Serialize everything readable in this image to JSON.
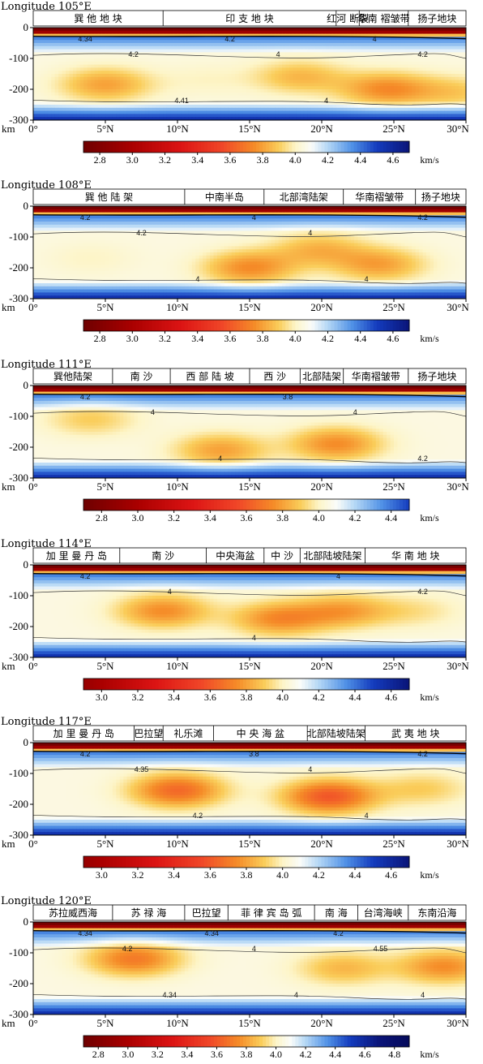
{
  "chart_data": [
    {
      "type": "heatmap",
      "title": "Longitude 105°E",
      "ylabel": "km",
      "y_ticks": [
        "0",
        "-100",
        "-200",
        "-300"
      ],
      "x_ticks": [
        "0°",
        "5°N",
        "10°N",
        "15°N",
        "20°N",
        "25°N",
        "30°N"
      ],
      "xlim": [
        0,
        30
      ],
      "ylim": [
        -300,
        0
      ],
      "regions": [
        {
          "label": "巽 他 地 块",
          "from": 0,
          "to": 9
        },
        {
          "label": "印 支 地 块",
          "from": 9,
          "to": 21
        },
        {
          "label": "红河 断裂",
          "from": 21,
          "to": 22.6
        },
        {
          "label": "华南 褶皱带",
          "from": 22.6,
          "to": 26
        },
        {
          "label": "扬子地块",
          "from": 26,
          "to": 30
        }
      ],
      "contour_labels": [
        "4.34",
        "4.2",
        "4.41",
        "4.2",
        "4",
        "4",
        "4",
        "4.2"
      ],
      "colorbar": {
        "ticks": [
          "2.8",
          "3.0",
          "3.2",
          "3.4",
          "3.6",
          "3.8",
          "4.0",
          "4.2",
          "4.4",
          "4.6"
        ],
        "unit": "km/s",
        "range": [
          2.7,
          4.7
        ]
      },
      "slow_anomalies": [
        {
          "x": 5,
          "depth": -185,
          "vs": 3.75
        },
        {
          "x": 12,
          "depth": -170,
          "vs": 3.95
        },
        {
          "x": 18.5,
          "depth": -160,
          "vs": 3.8
        },
        {
          "x": 24.5,
          "depth": -200,
          "vs": 3.7
        },
        {
          "x": 29.5,
          "depth": -210,
          "vs": 3.85
        }
      ]
    },
    {
      "type": "heatmap",
      "title": "Longitude 108°E",
      "ylabel": "km",
      "y_ticks": [
        "0",
        "-100",
        "-200",
        "-300"
      ],
      "x_ticks": [
        "0°",
        "5°N",
        "10°N",
        "15°N",
        "20°N",
        "25°N",
        "30°N"
      ],
      "xlim": [
        0,
        30
      ],
      "ylim": [
        -300,
        0
      ],
      "regions": [
        {
          "label": "巽 他 陆 架",
          "from": 0,
          "to": 10.5
        },
        {
          "label": "中南半岛",
          "from": 10.5,
          "to": 16
        },
        {
          "label": "北部湾陆架",
          "from": 16,
          "to": 21.5
        },
        {
          "label": "华南褶皱带",
          "from": 21.5,
          "to": 26.5
        },
        {
          "label": "扬子地块",
          "from": 26.5,
          "to": 30
        }
      ],
      "contour_labels": [
        "4.2",
        "4.2",
        "4",
        "4",
        "4",
        "4",
        "4.2"
      ],
      "colorbar": {
        "ticks": [
          "2.8",
          "3.0",
          "3.2",
          "3.4",
          "3.6",
          "3.8",
          "4.0",
          "4.2",
          "4.4",
          "4.6"
        ],
        "unit": "km/s",
        "range": [
          2.7,
          4.7
        ]
      },
      "slow_anomalies": [
        {
          "x": 4,
          "depth": -170,
          "vs": 3.95
        },
        {
          "x": 15,
          "depth": -200,
          "vs": 3.7
        },
        {
          "x": 19.8,
          "depth": -140,
          "vs": 3.8
        },
        {
          "x": 24,
          "depth": -190,
          "vs": 3.75
        }
      ]
    },
    {
      "type": "heatmap",
      "title": "Longitude 111°E",
      "ylabel": "km",
      "y_ticks": [
        "0",
        "-100",
        "-200",
        "-300"
      ],
      "x_ticks": [
        "0°",
        "5°N",
        "10°N",
        "15°N",
        "20°N",
        "25°N",
        "30°N"
      ],
      "xlim": [
        0,
        30
      ],
      "ylim": [
        -300,
        0
      ],
      "regions": [
        {
          "label": "巽他陆架",
          "from": 0,
          "to": 5.5
        },
        {
          "label": "南 沙",
          "from": 5.5,
          "to": 9.5
        },
        {
          "label": "西 部 陆 坡",
          "from": 9.5,
          "to": 15
        },
        {
          "label": "西 沙",
          "from": 15,
          "to": 18.5
        },
        {
          "label": "北部陆架",
          "from": 18.5,
          "to": 21.5
        },
        {
          "label": "华南褶皱带",
          "from": 21.5,
          "to": 26
        },
        {
          "label": "扬子地块",
          "from": 26,
          "to": 30
        }
      ],
      "contour_labels": [
        "4.2",
        "4",
        "4",
        "3.8",
        "4",
        "4.2"
      ],
      "colorbar": {
        "ticks": [
          "2.8",
          "3.0",
          "3.2",
          "3.4",
          "3.6",
          "3.8",
          "4.0",
          "4.2",
          "4.4"
        ],
        "unit": "km/s",
        "range": [
          2.7,
          4.5
        ]
      },
      "slow_anomalies": [
        {
          "x": 4,
          "depth": -110,
          "vs": 3.85
        },
        {
          "x": 13,
          "depth": -210,
          "vs": 3.75
        },
        {
          "x": 21,
          "depth": -190,
          "vs": 3.7
        }
      ]
    },
    {
      "type": "heatmap",
      "title": "Longitude 114°E",
      "ylabel": "km",
      "y_ticks": [
        "0",
        "-100",
        "-200",
        "-300"
      ],
      "x_ticks": [
        "0°",
        "5°N",
        "10°N",
        "15°N",
        "20°N",
        "25°N",
        "30°N"
      ],
      "xlim": [
        0,
        30
      ],
      "ylim": [
        -300,
        0
      ],
      "regions": [
        {
          "label": "加 里 曼 丹 岛",
          "from": 0,
          "to": 6
        },
        {
          "label": "南 沙",
          "from": 6,
          "to": 12
        },
        {
          "label": "中央海盆",
          "from": 12,
          "to": 16
        },
        {
          "label": "中 沙",
          "from": 16,
          "to": 18.5
        },
        {
          "label": "北部陆坡陆架",
          "from": 18.5,
          "to": 23
        },
        {
          "label": "华 南 地 块",
          "from": 23,
          "to": 30
        }
      ],
      "contour_labels": [
        "4.2",
        "4",
        "4",
        "4",
        "4.2"
      ],
      "colorbar": {
        "ticks": [
          "3.0",
          "3.2",
          "3.4",
          "3.6",
          "3.8",
          "4.0",
          "4.2",
          "4.4",
          "4.6"
        ],
        "unit": "km/s",
        "range": [
          2.9,
          4.7
        ]
      },
      "slow_anomalies": [
        {
          "x": 9,
          "depth": -150,
          "vs": 3.7
        },
        {
          "x": 17,
          "depth": -175,
          "vs": 3.7
        },
        {
          "x": 21.5,
          "depth": -150,
          "vs": 3.75
        },
        {
          "x": 26.5,
          "depth": -150,
          "vs": 3.9
        }
      ]
    },
    {
      "type": "heatmap",
      "title": "Longitude 117°E",
      "ylabel": "km",
      "y_ticks": [
        "0",
        "-100",
        "-200",
        "-300"
      ],
      "x_ticks": [
        "0°",
        "5°N",
        "10°N",
        "15°N",
        "20°N",
        "25°N",
        "30°N"
      ],
      "xlim": [
        0,
        30
      ],
      "ylim": [
        -300,
        0
      ],
      "regions": [
        {
          "label": "加 里 曼 丹 岛",
          "from": 0,
          "to": 7
        },
        {
          "label": "巴拉望",
          "from": 7,
          "to": 9
        },
        {
          "label": "礼乐滩",
          "from": 9,
          "to": 12.5
        },
        {
          "label": "中 央 海 盆",
          "from": 12.5,
          "to": 19
        },
        {
          "label": "北部陆坡陆架",
          "from": 19,
          "to": 23
        },
        {
          "label": "武 夷 地 块",
          "from": 23,
          "to": 30
        }
      ],
      "contour_labels": [
        "4.2",
        "4.35",
        "4.2",
        "3.8",
        "4",
        "4",
        "4.2"
      ],
      "colorbar": {
        "ticks": [
          "3.0",
          "3.2",
          "3.4",
          "3.6",
          "3.8",
          "4.0",
          "4.2",
          "4.4",
          "4.6"
        ],
        "unit": "km/s",
        "range": [
          2.9,
          4.7
        ]
      },
      "slow_anomalies": [
        {
          "x": 10,
          "depth": -155,
          "vs": 3.6
        },
        {
          "x": 20.5,
          "depth": -175,
          "vs": 3.55
        },
        {
          "x": 27,
          "depth": -150,
          "vs": 3.85
        }
      ]
    },
    {
      "type": "heatmap",
      "title": "Longitude 120°E",
      "ylabel": "km",
      "y_ticks": [
        "0",
        "-100",
        "-200",
        "-300"
      ],
      "x_ticks": [
        "0°",
        "5°N",
        "10°N",
        "15°N",
        "20°N",
        "25°N",
        "30°N"
      ],
      "xlim": [
        0,
        30
      ],
      "ylim": [
        -300,
        0
      ],
      "regions": [
        {
          "label": "苏拉威西海",
          "from": 0,
          "to": 5.5
        },
        {
          "label": "苏 禄 海",
          "from": 5.5,
          "to": 10.5
        },
        {
          "label": "巴拉望",
          "from": 10.5,
          "to": 13.5
        },
        {
          "label": "菲 律 宾 岛 弧",
          "from": 13.5,
          "to": 19.5
        },
        {
          "label": "南 海",
          "from": 19.5,
          "to": 22.5
        },
        {
          "label": "台湾海峡",
          "from": 22.5,
          "to": 26
        },
        {
          "label": "东南沿海",
          "from": 26,
          "to": 30
        }
      ],
      "contour_labels": [
        "4.34",
        "4.2",
        "4.34",
        "4.34",
        "4",
        "4",
        "4.2",
        "4.55",
        "4"
      ],
      "colorbar": {
        "ticks": [
          "2.8",
          "3.0",
          "3.2",
          "3.4",
          "3.6",
          "3.8",
          "4.0",
          "4.2",
          "4.4",
          "4.6",
          "4.8"
        ],
        "unit": "km/s",
        "range": [
          2.7,
          4.9
        ]
      },
      "slow_anomalies": [
        {
          "x": 7,
          "depth": -120,
          "vs": 3.65
        },
        {
          "x": 21.5,
          "depth": -150,
          "vs": 3.8
        },
        {
          "x": 28.5,
          "depth": -145,
          "vs": 3.7
        }
      ]
    }
  ]
}
